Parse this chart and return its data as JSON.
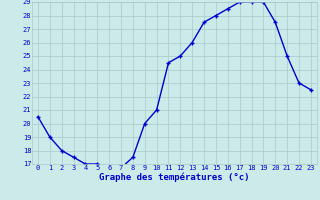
{
  "x": [
    0,
    1,
    2,
    3,
    4,
    5,
    6,
    7,
    8,
    9,
    10,
    11,
    12,
    13,
    14,
    15,
    16,
    17,
    18,
    19,
    20,
    21,
    22,
    23
  ],
  "y": [
    20.5,
    19.0,
    18.0,
    17.5,
    17.0,
    17.0,
    16.8,
    16.7,
    17.5,
    20.0,
    21.0,
    24.5,
    25.0,
    26.0,
    27.5,
    28.0,
    28.5,
    29.0,
    29.0,
    29.0,
    27.5,
    25.0,
    23.0,
    22.5
  ],
  "xlim": [
    -0.5,
    23.5
  ],
  "ylim": [
    17,
    29
  ],
  "yticks": [
    17,
    18,
    19,
    20,
    21,
    22,
    23,
    24,
    25,
    26,
    27,
    28,
    29
  ],
  "xticks": [
    0,
    1,
    2,
    3,
    4,
    5,
    6,
    7,
    8,
    9,
    10,
    11,
    12,
    13,
    14,
    15,
    16,
    17,
    18,
    19,
    20,
    21,
    22,
    23
  ],
  "xlabel": "Graphe des températures (°c)",
  "line_color": "#0000cc",
  "marker": "+",
  "bg_color": "#cceaea",
  "grid_color": "#aac8c8",
  "axis_label_color": "#0000cc",
  "tick_color": "#0000cc",
  "tick_fontsize": 5,
  "xlabel_fontsize": 6.5,
  "linewidth": 1.0,
  "markersize": 3,
  "markeredgewidth": 1.0
}
